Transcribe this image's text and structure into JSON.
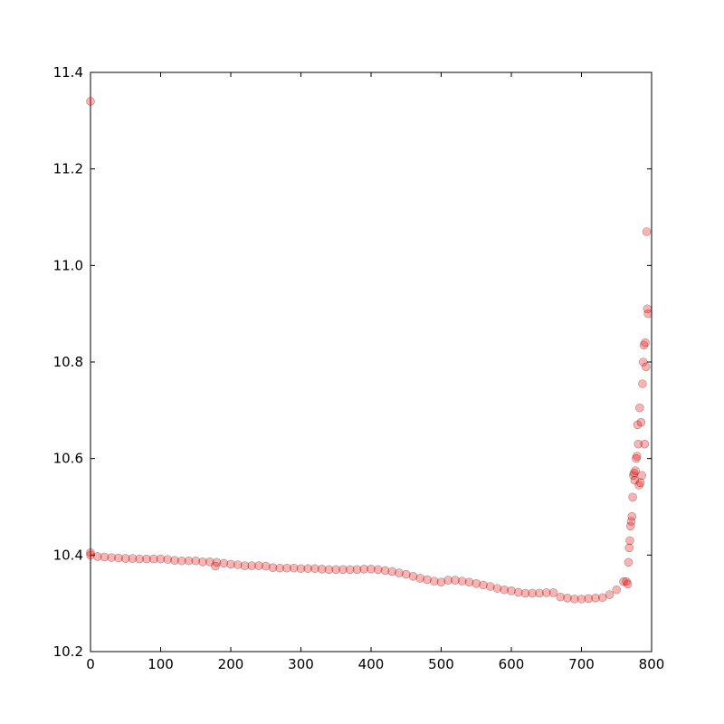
{
  "chart_data": {
    "type": "scatter",
    "x": [
      0,
      10,
      20,
      30,
      40,
      50,
      60,
      70,
      80,
      90,
      100,
      110,
      120,
      130,
      140,
      150,
      160,
      170,
      180,
      190,
      200,
      210,
      220,
      230,
      240,
      250,
      260,
      270,
      280,
      290,
      300,
      310,
      320,
      330,
      340,
      350,
      360,
      370,
      380,
      390,
      400,
      410,
      420,
      430,
      440,
      450,
      460,
      470,
      480,
      490,
      500,
      510,
      520,
      530,
      540,
      550,
      560,
      570,
      580,
      590,
      600,
      610,
      620,
      630,
      640,
      650,
      660,
      670,
      680,
      690,
      700,
      710,
      720,
      730,
      740,
      750,
      760,
      0,
      0,
      178,
      764,
      766,
      767,
      768,
      769,
      770,
      771,
      772,
      773,
      774,
      775,
      776,
      777,
      778,
      779,
      780,
      781,
      782,
      783,
      784,
      785,
      786,
      787,
      788,
      789,
      790,
      791,
      792,
      793,
      794,
      795
    ],
    "values": [
      10.4,
      10.397,
      10.396,
      10.395,
      10.394,
      10.393,
      10.393,
      10.392,
      10.392,
      10.392,
      10.392,
      10.391,
      10.389,
      10.388,
      10.388,
      10.388,
      10.386,
      10.386,
      10.385,
      10.383,
      10.381,
      10.38,
      10.378,
      10.378,
      10.378,
      10.377,
      10.374,
      10.373,
      10.373,
      10.373,
      10.372,
      10.372,
      10.372,
      10.371,
      10.37,
      10.37,
      10.37,
      10.37,
      10.37,
      10.371,
      10.371,
      10.37,
      10.368,
      10.366,
      10.363,
      10.36,
      10.356,
      10.352,
      10.349,
      10.346,
      10.344,
      10.348,
      10.348,
      10.346,
      10.344,
      10.341,
      10.338,
      10.335,
      10.331,
      10.328,
      10.326,
      10.323,
      10.321,
      10.321,
      10.321,
      10.322,
      10.322,
      10.313,
      10.311,
      10.309,
      10.309,
      10.31,
      10.311,
      10.312,
      10.318,
      10.328,
      10.345,
      11.34,
      10.405,
      10.377,
      10.345,
      10.34,
      10.385,
      10.415,
      10.43,
      10.46,
      10.47,
      10.48,
      10.52,
      10.565,
      10.57,
      10.555,
      10.575,
      10.6,
      10.605,
      10.67,
      10.63,
      10.545,
      10.705,
      10.55,
      10.675,
      10.565,
      10.755,
      10.8,
      10.835,
      10.63,
      10.84,
      10.79,
      11.07,
      10.91,
      10.9
    ],
    "color": "#ff0000",
    "xlim": [
      0,
      800
    ],
    "xticks": [
      0,
      100,
      200,
      300,
      400,
      500,
      600,
      700,
      800
    ],
    "ylim": [
      10.2,
      11.4
    ],
    "yticks": [
      10.2,
      10.4,
      10.6,
      10.8,
      {
        "value": 11,
        "label": "11.0"
      },
      11.2,
      11.4
    ]
  }
}
